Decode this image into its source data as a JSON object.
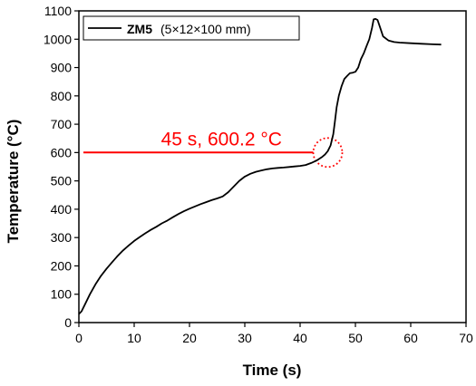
{
  "chart_data": {
    "type": "line",
    "xlabel": "Time (s)",
    "ylabel": "Temperature (°C)",
    "xlim": [
      0,
      70
    ],
    "ylim": [
      0,
      1100
    ],
    "xticks": [
      0,
      10,
      20,
      30,
      40,
      50,
      60,
      70
    ],
    "yticks": [
      0,
      100,
      200,
      300,
      400,
      500,
      600,
      700,
      800,
      900,
      1000,
      1100
    ],
    "grid": false,
    "legend": {
      "placement": "top-left",
      "label_bold": "ZM5",
      "label_rest": "(5×12×100 mm)"
    },
    "series": [
      {
        "name": "ZM5 (5×12×100 mm)",
        "color": "#000000",
        "x": [
          0,
          0.5,
          1,
          2,
          3,
          4,
          5,
          6,
          7,
          8,
          9,
          10,
          11,
          12,
          13,
          14,
          15,
          16,
          17,
          18,
          19,
          20,
          21,
          22,
          23,
          24,
          25,
          26,
          27,
          28,
          29,
          30,
          31,
          32,
          33,
          34,
          35,
          36,
          37,
          38,
          39,
          40,
          41,
          42,
          43,
          44,
          44.5,
          45,
          45.5,
          46,
          46.3,
          46.6,
          47,
          47.5,
          48,
          48.5,
          49,
          49.5,
          50,
          50.5,
          51,
          51.5,
          52,
          52.5,
          53,
          53.3,
          53.6,
          54,
          54.5,
          55,
          56,
          57,
          58,
          60,
          62,
          64,
          65.5
        ],
        "y": [
          30,
          40,
          60,
          100,
          135,
          165,
          190,
          213,
          235,
          255,
          272,
          288,
          302,
          315,
          327,
          338,
          350,
          360,
          372,
          383,
          393,
          402,
          410,
          418,
          425,
          432,
          438,
          445,
          460,
          480,
          500,
          515,
          525,
          532,
          537,
          541,
          544,
          546,
          547,
          549,
          551,
          553,
          556,
          563,
          572,
          585,
          593,
          605,
          625,
          665,
          710,
          760,
          800,
          835,
          860,
          870,
          880,
          882,
          885,
          900,
          930,
          950,
          975,
          1000,
          1040,
          1070,
          1072,
          1068,
          1040,
          1010,
          995,
          990,
          988,
          986,
          984,
          982,
          981
        ]
      }
    ],
    "annotations": [
      {
        "text": "45 s, 600.2 °C",
        "x": 45,
        "y": 600.2,
        "color": "#ff0000"
      }
    ]
  }
}
